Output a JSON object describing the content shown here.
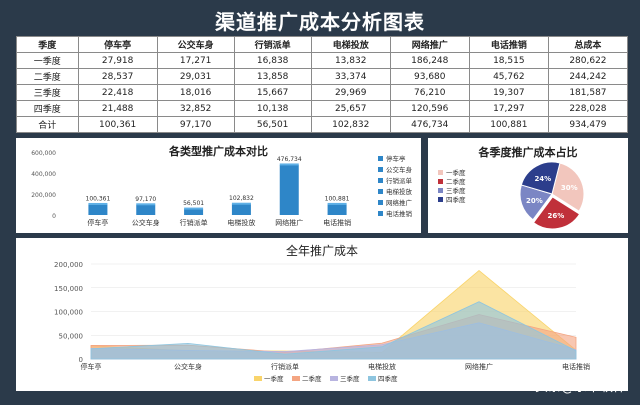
{
  "title": "渠道推广成本分析图表",
  "table": {
    "headers": [
      "季度",
      "停车亭",
      "公交车身",
      "行销派单",
      "电梯投放",
      "网络推广",
      "电话推销",
      "总成本"
    ],
    "rows": [
      [
        "一季度",
        "27,918",
        "17,271",
        "16,838",
        "13,832",
        "186,248",
        "18,515",
        "280,622"
      ],
      [
        "二季度",
        "28,537",
        "29,031",
        "13,858",
        "33,374",
        "93,680",
        "45,762",
        "244,242"
      ],
      [
        "三季度",
        "22,418",
        "18,016",
        "15,667",
        "29,969",
        "76,210",
        "19,307",
        "181,587"
      ],
      [
        "四季度",
        "21,488",
        "32,852",
        "10,138",
        "25,657",
        "120,596",
        "17,297",
        "228,028"
      ],
      [
        "合计",
        "100,361",
        "97,170",
        "56,501",
        "102,832",
        "476,734",
        "100,881",
        "934,479"
      ]
    ]
  },
  "chart_data": [
    {
      "type": "bar",
      "title": "各类型推广成本对比",
      "categories": [
        "停车亭",
        "公交车身",
        "行销派单",
        "电梯投放",
        "网络推广",
        "电话推销"
      ],
      "values": [
        100361,
        97170,
        56501,
        102832,
        476734,
        100881
      ],
      "value_labels": [
        "100,361",
        "97,170",
        "56,501",
        "102,832",
        "476,734",
        "100,881"
      ],
      "ylim": [
        0,
        600000
      ],
      "yticks": [
        0,
        200000,
        400000,
        600000
      ],
      "ytick_labels": [
        "0",
        "200,000",
        "400,000",
        "600,000"
      ],
      "legend": {
        "position": "right",
        "entries": [
          "停车亭",
          "公交车身",
          "行销派单",
          "电梯投放",
          "网络推广",
          "电话推销"
        ]
      },
      "color": "#2e86c8"
    },
    {
      "type": "pie",
      "title": "各季度推广成本占比",
      "labels": [
        "一季度",
        "二季度",
        "三季度",
        "四季度"
      ],
      "values": [
        280622,
        244242,
        181587,
        228028
      ],
      "percent_labels": [
        "30%",
        "26%",
        "20%",
        "24%"
      ],
      "colors": [
        "#f2c6bd",
        "#c0303a",
        "#7b86c4",
        "#2c3e8c"
      ],
      "legend": {
        "position": "left",
        "entries": [
          "一季度",
          "二季度",
          "三季度",
          "四季度"
        ]
      }
    },
    {
      "type": "area",
      "title": "全年推广成本",
      "categories": [
        "停车亭",
        "公交车身",
        "行销派单",
        "电梯投放",
        "网络推广",
        "电话推销"
      ],
      "series": [
        {
          "name": "一季度",
          "values": [
            27918,
            17271,
            16838,
            13832,
            186248,
            18515
          ],
          "color": "#f9d46b"
        },
        {
          "name": "二季度",
          "values": [
            28537,
            29031,
            13858,
            33374,
            93680,
            45762
          ],
          "color": "#f4a582"
        },
        {
          "name": "三季度",
          "values": [
            22418,
            18016,
            15667,
            29969,
            76210,
            19307
          ],
          "color": "#b8b4e0"
        },
        {
          "name": "四季度",
          "values": [
            21488,
            32852,
            10138,
            25657,
            120596,
            17297
          ],
          "color": "#8ec5df"
        }
      ],
      "ylim": [
        0,
        200000
      ],
      "yticks": [
        0,
        50000,
        100000,
        150000,
        200000
      ],
      "ytick_labels": [
        "0",
        "50,000",
        "100,000",
        "150,000",
        "200,000"
      ],
      "legend": {
        "position": "bottom",
        "entries": [
          "一季度",
          "二季度",
          "三季度",
          "四季度"
        ]
      }
    }
  ],
  "watermark": "头条@永中软件"
}
